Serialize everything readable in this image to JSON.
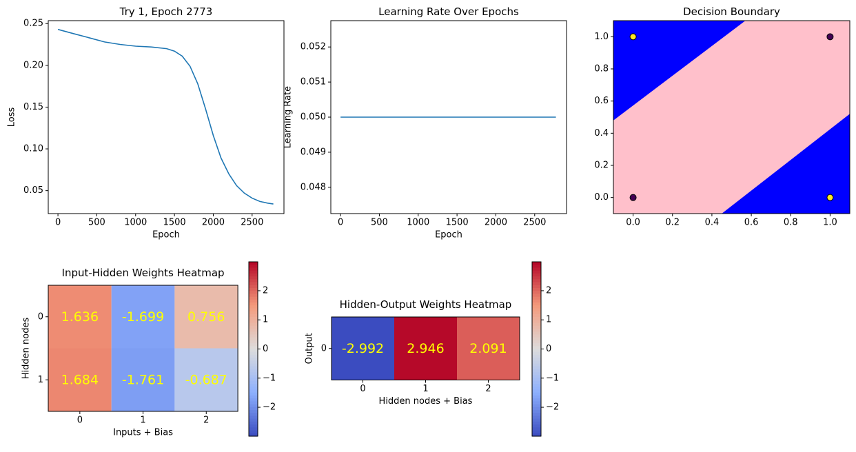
{
  "chart_data": [
    {
      "type": "line",
      "title": "Try 1, Epoch 2773",
      "xlabel": "Epoch",
      "ylabel": "Loss",
      "xlim": [
        -125,
        2910
      ],
      "ylim": [
        0.0225,
        0.2535
      ],
      "xticks": [
        0,
        500,
        1000,
        1500,
        2000,
        2500
      ],
      "yticks": [
        0.05,
        0.1,
        0.15,
        0.2,
        0.25
      ],
      "ytick_labels": [
        "0.05",
        "0.10",
        "0.15",
        "0.20",
        "0.25"
      ],
      "color": "#1f77b4",
      "x": [
        0,
        200,
        400,
        600,
        800,
        1000,
        1200,
        1400,
        1500,
        1600,
        1700,
        1800,
        1900,
        2000,
        2100,
        2200,
        2300,
        2400,
        2500,
        2600,
        2700,
        2773
      ],
      "y": [
        0.243,
        0.238,
        0.233,
        0.228,
        0.225,
        0.223,
        0.222,
        0.22,
        0.217,
        0.211,
        0.199,
        0.178,
        0.148,
        0.116,
        0.089,
        0.07,
        0.056,
        0.047,
        0.041,
        0.037,
        0.035,
        0.034
      ]
    },
    {
      "type": "line",
      "title": "Learning Rate Over Epochs",
      "xlabel": "Epoch",
      "ylabel": "Learning Rate",
      "xlim": [
        -125,
        2910
      ],
      "ylim": [
        0.04725,
        0.05275
      ],
      "xticks": [
        0,
        500,
        1000,
        1500,
        2000,
        2500
      ],
      "yticks": [
        0.048,
        0.049,
        0.05,
        0.051,
        0.052
      ],
      "ytick_labels": [
        "0.048",
        "0.049",
        "0.050",
        "0.051",
        "0.052"
      ],
      "color": "#1f77b4",
      "x": [
        0,
        2773
      ],
      "y": [
        0.05,
        0.05
      ]
    },
    {
      "type": "scatter",
      "title": "Decision Boundary",
      "xlim": [
        -0.1,
        1.1
      ],
      "ylim": [
        -0.1,
        1.1
      ],
      "xticks": [
        0.0,
        0.2,
        0.4,
        0.6,
        0.8,
        1.0
      ],
      "yticks": [
        0.0,
        0.2,
        0.4,
        0.6,
        0.8,
        1.0
      ],
      "tick_labels": [
        "0.0",
        "0.2",
        "0.4",
        "0.6",
        "0.8",
        "1.0"
      ],
      "region_colors": {
        "class_1": "#0000ff",
        "class_0": "#ffc0cb"
      },
      "regions": [
        {
          "class": "class_1",
          "polygon": [
            [
              -0.1,
              0.48
            ],
            [
              -0.1,
              1.1
            ],
            [
              0.57,
              1.1
            ]
          ]
        },
        {
          "class": "class_1",
          "polygon": [
            [
              0.45,
              -0.1
            ],
            [
              1.1,
              0.52
            ],
            [
              1.1,
              -0.1
            ]
          ]
        }
      ],
      "points": [
        {
          "x": 0,
          "y": 0,
          "label": 0,
          "color": "#440154"
        },
        {
          "x": 0,
          "y": 1,
          "label": 1,
          "color": "#fde725"
        },
        {
          "x": 1,
          "y": 0,
          "label": 1,
          "color": "#fde725"
        },
        {
          "x": 1,
          "y": 1,
          "label": 0,
          "color": "#440154"
        }
      ]
    },
    {
      "type": "heatmap",
      "title": "Input-Hidden Weights Heatmap",
      "xlabel": "Inputs + Bias",
      "ylabel": "Hidden nodes",
      "x_categories": [
        "0",
        "1",
        "2"
      ],
      "y_categories": [
        "0",
        "1"
      ],
      "values": [
        [
          1.636,
          -1.699,
          0.756
        ],
        [
          1.684,
          -1.761,
          -0.687
        ]
      ],
      "cell_labels": [
        [
          "1.636",
          "-1.699",
          "0.756"
        ],
        [
          "1.684",
          "-1.761",
          "-0.687"
        ]
      ],
      "vmin": -2.992,
      "vmax": 2.992,
      "colormap": "coolwarm",
      "annotation_color": "#ffff00",
      "colorbar_ticks": [
        -2,
        -1,
        0,
        1,
        2
      ],
      "colorbar_labels": [
        "−2",
        "−1",
        "0",
        "1",
        "2"
      ]
    },
    {
      "type": "heatmap",
      "title": "Hidden-Output Weights Heatmap",
      "xlabel": "Hidden nodes + Bias",
      "ylabel": "Output",
      "x_categories": [
        "0",
        "1",
        "2"
      ],
      "y_categories": [
        "0"
      ],
      "values": [
        [
          -2.992,
          2.946,
          2.091
        ]
      ],
      "cell_labels": [
        [
          "-2.992",
          "2.946",
          "2.091"
        ]
      ],
      "vmin": -2.992,
      "vmax": 2.992,
      "colormap": "coolwarm",
      "annotation_color": "#ffff00",
      "colorbar_ticks": [
        -2,
        -1,
        0,
        1,
        2
      ],
      "colorbar_labels": [
        "−2",
        "−1",
        "0",
        "1",
        "2"
      ]
    }
  ]
}
